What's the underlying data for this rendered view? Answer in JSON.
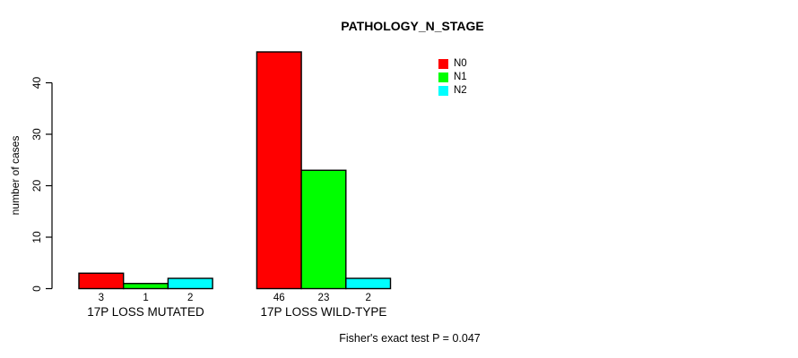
{
  "chart_data": {
    "type": "bar",
    "title": "PATHOLOGY_N_STAGE",
    "ylabel": "number of cases",
    "xlabel": "",
    "categories": [
      "17P LOSS MUTATED",
      "17P LOSS WILD-TYPE"
    ],
    "series": [
      {
        "name": "N0",
        "color": "#FF0000",
        "values": [
          3,
          46
        ]
      },
      {
        "name": "N1",
        "color": "#00FF00",
        "values": [
          1,
          23
        ]
      },
      {
        "name": "N2",
        "color": "#00FFFF",
        "values": [
          2,
          2
        ]
      }
    ],
    "bar_value_labels": [
      [
        "3",
        "1",
        "2"
      ],
      [
        "46",
        "23",
        "2"
      ]
    ],
    "yticks": [
      0,
      10,
      20,
      30,
      40
    ],
    "ylim": [
      0,
      46
    ],
    "grid": false,
    "legend_position": "top-right",
    "bar_border_color": "#000000",
    "annotation": "Fisher's exact test P = 0.047"
  }
}
